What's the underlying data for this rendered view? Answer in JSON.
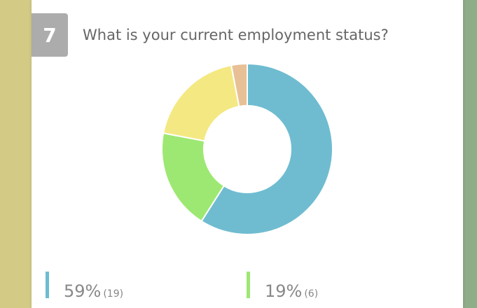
{
  "question": {
    "number": "7",
    "text": "What is your current employment status?"
  },
  "chart_data": {
    "type": "pie",
    "categories": [
      null,
      null,
      null,
      null
    ],
    "values": [
      59,
      19,
      19,
      3
    ],
    "value_labels": [
      "59%",
      "19%",
      null,
      null
    ],
    "counts": [
      19,
      6,
      6,
      1
    ],
    "count_labels": [
      "(19)",
      "(6)",
      null,
      null
    ],
    "colors": [
      "#6fbcd0",
      "#9de872",
      "#f4e882",
      "#e8c096"
    ],
    "donut": true
  }
}
